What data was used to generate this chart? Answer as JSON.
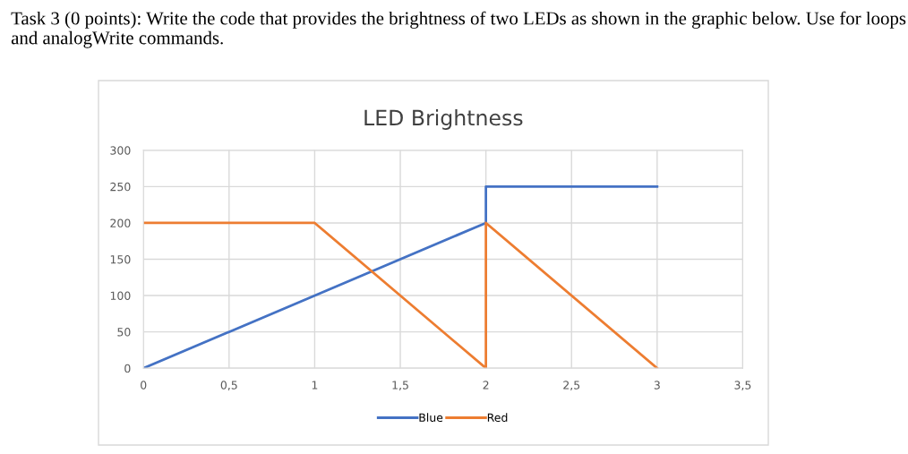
{
  "chart_data": {
    "type": "line",
    "title": "LED Brightness",
    "annotations": [
      "Task 3 (0 points): Write the code that provides the brightness of two LEDs as shown in the graphic below. Use for loops and analogWrite commands."
    ],
    "series": [
      {
        "name": "Blue",
        "color": "#4472c4",
        "x": [
          0,
          2,
          2,
          3
        ],
        "values": [
          0,
          200,
          250,
          250
        ]
      },
      {
        "name": "Red",
        "color": "#ed7d31",
        "x": [
          0,
          1,
          2,
          2,
          3
        ],
        "values": [
          200,
          200,
          0,
          200,
          0
        ]
      }
    ],
    "xlim": [
      0,
      3.5
    ],
    "xticks": [
      0,
      {
        "value": 0.5,
        "label": "0,5"
      },
      1,
      {
        "value": 1.5,
        "label": "1,5"
      },
      2,
      {
        "value": 2.5,
        "label": "2,5"
      },
      3,
      {
        "value": 3.5,
        "label": "3,5"
      }
    ],
    "ylim": [
      0,
      300
    ],
    "yticks": [
      0,
      50,
      100,
      150,
      200,
      250,
      300
    ],
    "grid": true,
    "legend": "bottom",
    "marker": "none",
    "line_style": "solid"
  }
}
